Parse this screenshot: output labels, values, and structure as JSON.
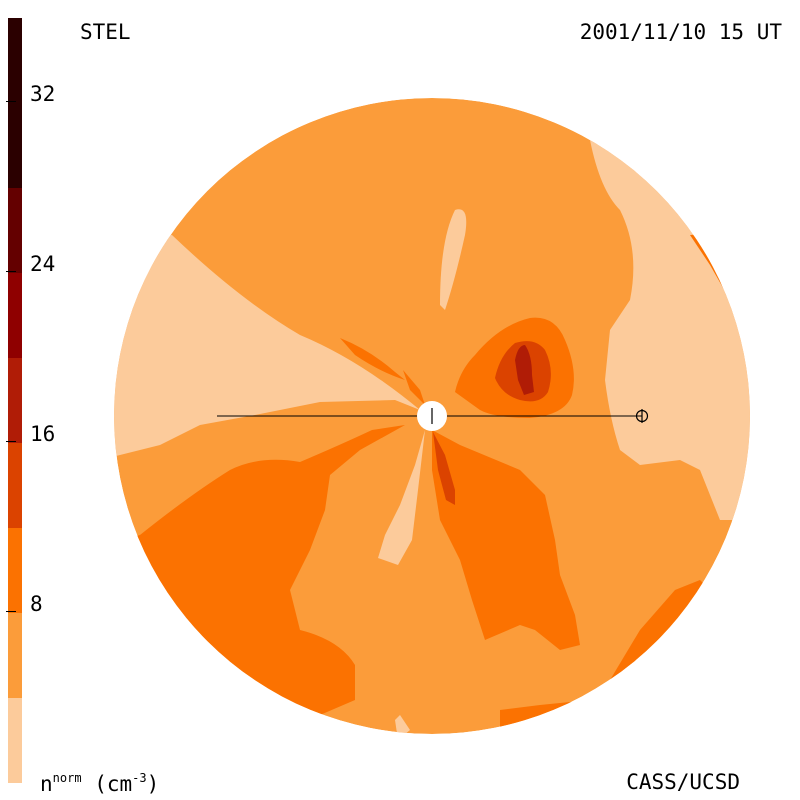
{
  "header": {
    "left_title": "STEL",
    "right_title": "2001/11/10 15 UT"
  },
  "footer": {
    "credit": "CASS/UCSD",
    "unit_label": {
      "symbol": "n",
      "superscript": "norm",
      "unit": "(cm",
      "unit_exponent": "-3",
      "unit_close": ")"
    }
  },
  "colorbar": {
    "ticks": [
      "32",
      "24",
      "16",
      "8"
    ],
    "levels": [
      {
        "min": 0,
        "max": 4,
        "color": "#fccb9b"
      },
      {
        "min": 4,
        "max": 8,
        "color": "#fb9c3a"
      },
      {
        "min": 8,
        "max": 12,
        "color": "#fb7201"
      },
      {
        "min": 12,
        "max": 16,
        "color": "#db4300"
      },
      {
        "min": 16,
        "max": 20,
        "color": "#b01c06"
      },
      {
        "min": 20,
        "max": 24,
        "color": "#8f0000"
      },
      {
        "min": 24,
        "max": 28,
        "color": "#640000"
      },
      {
        "min": 28,
        "max": 36,
        "color": "#2b0000"
      }
    ]
  },
  "map": {
    "background_color": "#fb9c3a",
    "markers": [
      "sun",
      "earth"
    ]
  }
}
